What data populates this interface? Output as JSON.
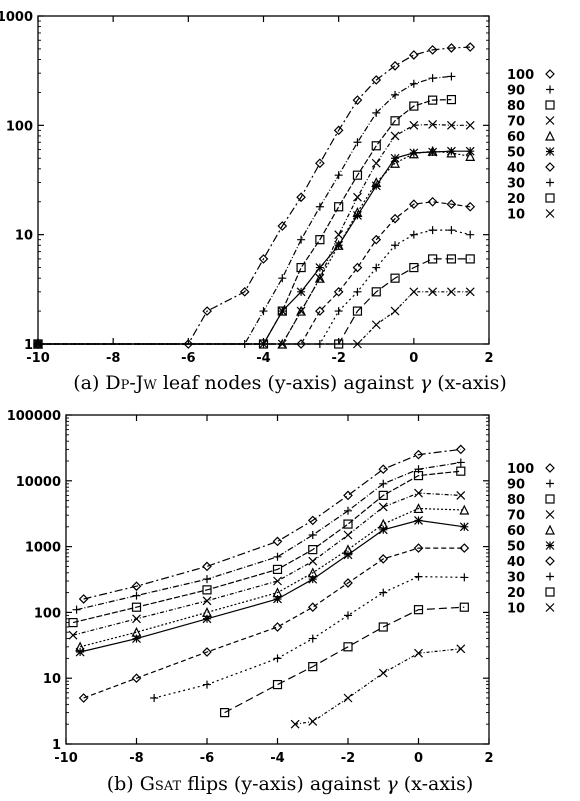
{
  "captions": {
    "a": {
      "prefix": "(a) ",
      "method": "Dp-Jw",
      "rest": " leaf nodes (y-axis) against ",
      "symbol": "γ",
      "suffix": " (x-axis)"
    },
    "b": {
      "prefix": "(b) ",
      "method": "Gsat",
      "rest": " flips (y-axis) against ",
      "symbol": "γ",
      "suffix": " (x-axis)"
    }
  },
  "chart_data": [
    {
      "type": "line",
      "xlim": [
        -10,
        2
      ],
      "ylim": [
        1,
        1000
      ],
      "y_scale": "log",
      "x_ticks": [
        -10,
        -8,
        -6,
        -4,
        -2,
        0,
        2
      ],
      "x_tick_labels": [
        "-10",
        "-8",
        "-6",
        "-4",
        "-2",
        "0",
        "2"
      ],
      "y_ticks": [
        1,
        10,
        100,
        1000
      ],
      "y_tick_labels": [
        "1",
        "10",
        "100",
        "1000"
      ],
      "legend_position": "right",
      "series": [
        {
          "name": "100",
          "marker": "diamond",
          "dash": "8 3 2 3",
          "x": [
            -10,
            -6,
            -5.5,
            -4.5,
            -4,
            -3.5,
            -3,
            -2.5,
            -2,
            -1.5,
            -1,
            -0.5,
            0,
            0.5,
            1,
            1.5
          ],
          "y": [
            1,
            1,
            2,
            3,
            6,
            12,
            22,
            45,
            90,
            170,
            260,
            350,
            440,
            490,
            510,
            520
          ]
        },
        {
          "name": "90",
          "marker": "plus",
          "dash": "6 2 1 2",
          "x": [
            -10,
            -4.5,
            -4,
            -3.5,
            -3,
            -2.5,
            -2,
            -1.5,
            -1,
            -0.5,
            0,
            0.5,
            1
          ],
          "y": [
            1,
            1,
            2,
            4,
            9,
            18,
            35,
            70,
            130,
            190,
            240,
            270,
            280
          ]
        },
        {
          "name": "80",
          "marker": "square",
          "dash": "6 2",
          "x": [
            -10,
            -4,
            -3.5,
            -3,
            -2.5,
            -2,
            -1.5,
            -1,
            -0.5,
            0,
            0.5,
            1
          ],
          "y": [
            1,
            1,
            2,
            5,
            9,
            18,
            35,
            65,
            110,
            150,
            170,
            172
          ]
        },
        {
          "name": "70",
          "marker": "cross",
          "dash": "4 2 1 2",
          "x": [
            -10,
            -3.5,
            -3,
            -2.5,
            -2,
            -1.5,
            -1,
            -0.5,
            0,
            0.5,
            1,
            1.5
          ],
          "y": [
            1,
            1,
            2,
            4,
            10,
            22,
            45,
            80,
            100,
            102,
            100,
            100
          ]
        },
        {
          "name": "60",
          "marker": "triangle",
          "dash": "2 2",
          "x": [
            -10,
            -3.5,
            -3,
            -2.5,
            -2,
            -1.5,
            -1,
            -0.5,
            0,
            0.5,
            1,
            1.5
          ],
          "y": [
            1,
            1,
            2,
            4,
            8,
            16,
            30,
            45,
            55,
            58,
            56,
            52
          ]
        },
        {
          "name": "50",
          "marker": "star",
          "dash": "",
          "x": [
            -10,
            -4,
            -3.5,
            -3,
            -2.5,
            -2,
            -1.5,
            -1,
            -0.5,
            0,
            0.5,
            1,
            1.5
          ],
          "y": [
            1,
            1,
            2,
            3,
            5,
            8,
            15,
            28,
            50,
            56,
            57,
            58,
            58
          ]
        },
        {
          "name": "40",
          "marker": "diamond",
          "dash": "5 3",
          "x": [
            -10,
            -3,
            -2.5,
            -2,
            -1.5,
            -1,
            -0.5,
            0,
            0.5,
            1,
            1.5
          ],
          "y": [
            1,
            1,
            2,
            3,
            5,
            9,
            14,
            19,
            20,
            19,
            18
          ]
        },
        {
          "name": "30",
          "marker": "plus",
          "dash": "2 3",
          "x": [
            -10,
            -2.5,
            -2,
            -1.5,
            -1,
            -0.5,
            0,
            0.5,
            1,
            1.5
          ],
          "y": [
            1,
            1,
            2,
            3,
            5,
            8,
            10,
            11,
            11,
            10
          ]
        },
        {
          "name": "20",
          "marker": "square",
          "dash": "8 4",
          "x": [
            -10,
            -2,
            -1.5,
            -1,
            -0.5,
            0,
            0.5,
            1,
            1.5
          ],
          "y": [
            1,
            1,
            2,
            3,
            4,
            5,
            6,
            6,
            6
          ]
        },
        {
          "name": "10",
          "marker": "cross",
          "dash": "3 2 1 2",
          "x": [
            -10,
            -1.5,
            -1,
            -0.5,
            0,
            0.5,
            1,
            1.5
          ],
          "y": [
            1,
            1,
            1.5,
            2,
            3,
            3,
            3,
            3
          ]
        }
      ]
    },
    {
      "type": "line",
      "xlim": [
        -10,
        2
      ],
      "ylim": [
        1,
        100000
      ],
      "y_scale": "log",
      "x_ticks": [
        -10,
        -8,
        -6,
        -4,
        -2,
        0,
        2
      ],
      "x_tick_labels": [
        "-10",
        "-8",
        "-6",
        "-4",
        "-2",
        "0",
        "2"
      ],
      "y_ticks": [
        1,
        10,
        100,
        1000,
        10000,
        100000
      ],
      "y_tick_labels": [
        "1",
        "10",
        "100",
        "1000",
        "10000",
        "100000"
      ],
      "legend_position": "right",
      "series": [
        {
          "name": "100",
          "marker": "diamond",
          "dash": "8 3 2 3",
          "x": [
            -9.5,
            -8,
            -6,
            -4,
            -3,
            -2,
            -1,
            0,
            1.2
          ],
          "y": [
            160,
            250,
            500,
            1200,
            2500,
            6000,
            15000,
            25000,
            30000
          ]
        },
        {
          "name": "90",
          "marker": "plus",
          "dash": "6 2 1 2",
          "x": [
            -9.7,
            -8,
            -6,
            -4,
            -3,
            -2,
            -1,
            0,
            1.2
          ],
          "y": [
            110,
            180,
            320,
            700,
            1500,
            3500,
            9000,
            15000,
            19000
          ]
        },
        {
          "name": "80",
          "marker": "square",
          "dash": "6 2",
          "x": [
            -9.8,
            -8,
            -6,
            -4,
            -3,
            -2,
            -1,
            0,
            1.2
          ],
          "y": [
            70,
            120,
            220,
            450,
            900,
            2200,
            6000,
            12000,
            14000
          ]
        },
        {
          "name": "70",
          "marker": "cross",
          "dash": "4 2 1 2",
          "x": [
            -9.8,
            -8,
            -6,
            -4,
            -3,
            -2,
            -1,
            0,
            1.2
          ],
          "y": [
            45,
            80,
            150,
            300,
            600,
            1500,
            4000,
            6500,
            6000
          ]
        },
        {
          "name": "60",
          "marker": "triangle",
          "dash": "2 2",
          "x": [
            -9.6,
            -8,
            -6,
            -4,
            -3,
            -2,
            -1,
            0,
            1.3
          ],
          "y": [
            30,
            50,
            100,
            200,
            400,
            900,
            2200,
            3800,
            3600
          ]
        },
        {
          "name": "50",
          "marker": "star",
          "dash": "",
          "x": [
            -9.6,
            -8,
            -6,
            -4,
            -3,
            -2,
            -1,
            0,
            1.3
          ],
          "y": [
            25,
            40,
            80,
            160,
            320,
            750,
            1800,
            2500,
            2000
          ]
        },
        {
          "name": "40",
          "marker": "diamond",
          "dash": "5 3",
          "x": [
            -9.5,
            -8,
            -6,
            -4,
            -3,
            -2,
            -1,
            0,
            1.3
          ],
          "y": [
            5,
            10,
            25,
            60,
            120,
            280,
            650,
            950,
            950
          ]
        },
        {
          "name": "30",
          "marker": "plus",
          "dash": "2 3",
          "x": [
            -7.5,
            -6,
            -4,
            -3,
            -2,
            -1,
            0,
            1.3
          ],
          "y": [
            5,
            8,
            20,
            40,
            90,
            200,
            350,
            340
          ]
        },
        {
          "name": "20",
          "marker": "square",
          "dash": "8 4",
          "x": [
            -5.5,
            -4,
            -3,
            -2,
            -1,
            0,
            1.3
          ],
          "y": [
            3,
            8,
            15,
            30,
            60,
            110,
            120
          ]
        },
        {
          "name": "10",
          "marker": "cross",
          "dash": "3 2 1 2",
          "x": [
            -3.5,
            -3,
            -2,
            -1,
            0,
            1.2
          ],
          "y": [
            2,
            2.2,
            5,
            12,
            24,
            28
          ]
        }
      ]
    }
  ]
}
